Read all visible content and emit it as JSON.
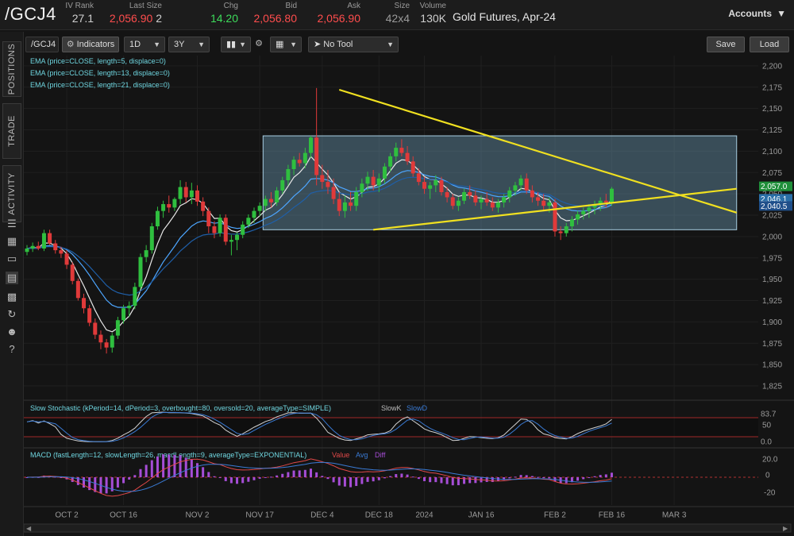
{
  "quote": {
    "symbol": "/GCJ4",
    "description": "Gold Futures, Apr-24",
    "fields": [
      {
        "label": "IV Rank",
        "value": "27.1",
        "color": "#cfcfcf"
      },
      {
        "label": "Last Size",
        "value": "2,056.90",
        "extra": "2",
        "color": "#ff4d4d"
      },
      {
        "label": "Chg",
        "value": "14.20",
        "color": "#3ddc5b"
      },
      {
        "label": "Bid",
        "value": "2,056.80",
        "color": "#ff4d4d"
      },
      {
        "label": "Ask",
        "value": "2,056.90",
        "color": "#ff4d4d"
      },
      {
        "label": "Size",
        "value": "42x4",
        "color": "#9a9a9a"
      },
      {
        "label": "Volume",
        "value": "130K",
        "color": "#cfcfcf"
      }
    ],
    "accounts_label": "Accounts"
  },
  "sidebar": {
    "tabs": [
      "POSITIONS",
      "TRADE",
      "ACTIVITY"
    ],
    "icons": [
      "list-icon",
      "grid-icon",
      "clipboard-icon",
      "chart-icon",
      "tiles-icon",
      "refresh-icon",
      "people-icon",
      "help-icon"
    ]
  },
  "toolbar": {
    "symbol": "/GCJ4",
    "studies_label": "Indicators",
    "interval": "1D",
    "range": "3Y",
    "drawing_tool": "No Tool",
    "save_label": "Save",
    "load_label": "Load"
  },
  "chart_data": {
    "type": "candlestick",
    "price_axis": {
      "min": 1812,
      "max": 2212,
      "ticks": [
        2200,
        2175,
        2150,
        2125,
        2100,
        2075,
        2050,
        2025,
        2000,
        1975,
        1950,
        1925,
        1900,
        1875,
        1850,
        1825
      ]
    },
    "date_labels": [
      {
        "label": "OCT 2",
        "index": 7
      },
      {
        "label": "OCT 16",
        "index": 17
      },
      {
        "label": "NOV 2",
        "index": 30
      },
      {
        "label": "NOV 17",
        "index": 41
      },
      {
        "label": "DEC 4",
        "index": 52
      },
      {
        "label": "DEC 18",
        "index": 62
      },
      {
        "label": "2024",
        "index": 70
      },
      {
        "label": "JAN 16",
        "index": 80
      },
      {
        "label": "FEB 2",
        "index": 93
      },
      {
        "label": "FEB 16",
        "index": 103
      },
      {
        "label": "MAR 3",
        "index": 114
      }
    ],
    "studies": [
      "EMA (price=CLOSE, length=5, displace=0)",
      "EMA (price=CLOSE, length=13, displace=0)",
      "EMA (price=CLOSE, length=21, displace=0)"
    ],
    "last_price_tags": [
      "2,057.0",
      "2,046.1",
      "2,040.5"
    ],
    "last_price_values": [
      2057,
      2046.1,
      2040.5
    ],
    "candles": [
      [
        1982,
        1990,
        1978,
        1986
      ],
      [
        1986,
        1993,
        1982,
        1989
      ],
      [
        1989,
        1994,
        1984,
        1986
      ],
      [
        1986,
        2008,
        1983,
        2004
      ],
      [
        2004,
        2008,
        1990,
        1992
      ],
      [
        1992,
        1996,
        1980,
        1984
      ],
      [
        1984,
        1988,
        1975,
        1980
      ],
      [
        1980,
        1984,
        1962,
        1967
      ],
      [
        1967,
        1970,
        1944,
        1948
      ],
      [
        1948,
        1951,
        1925,
        1928
      ],
      [
        1928,
        1933,
        1910,
        1916
      ],
      [
        1916,
        1920,
        1895,
        1899
      ],
      [
        1899,
        1904,
        1880,
        1885
      ],
      [
        1885,
        1890,
        1868,
        1876
      ],
      [
        1876,
        1880,
        1863,
        1870
      ],
      [
        1870,
        1887,
        1864,
        1884
      ],
      [
        1884,
        1906,
        1880,
        1902
      ],
      [
        1902,
        1920,
        1898,
        1916
      ],
      [
        1916,
        1924,
        1906,
        1919
      ],
      [
        1919,
        1946,
        1915,
        1941
      ],
      [
        1941,
        1980,
        1938,
        1976
      ],
      [
        1976,
        1990,
        1970,
        1984
      ],
      [
        1984,
        2016,
        1980,
        2012
      ],
      [
        2012,
        2035,
        2008,
        2030
      ],
      [
        2030,
        2042,
        2022,
        2038
      ],
      [
        2038,
        2048,
        2028,
        2034
      ],
      [
        2034,
        2046,
        2030,
        2044
      ],
      [
        2044,
        2066,
        2038,
        2058
      ],
      [
        2058,
        2064,
        2040,
        2046
      ],
      [
        2046,
        2063,
        2038,
        2054
      ],
      [
        2054,
        2060,
        2036,
        2041
      ],
      [
        2041,
        2046,
        2024,
        2030
      ],
      [
        2030,
        2034,
        2004,
        2012
      ],
      [
        2012,
        2018,
        1998,
        2004
      ],
      [
        2004,
        2026,
        2000,
        2022
      ],
      [
        2022,
        2026,
        1990,
        1994
      ],
      [
        1994,
        2002,
        1978,
        1996
      ],
      [
        1996,
        2005,
        1984,
        2002
      ],
      [
        2002,
        2018,
        1998,
        2014
      ],
      [
        2014,
        2026,
        2010,
        2022
      ],
      [
        2022,
        2034,
        2016,
        2030
      ],
      [
        2030,
        2040,
        2024,
        2036
      ],
      [
        2036,
        2048,
        2030,
        2044
      ],
      [
        2044,
        2052,
        2034,
        2040
      ],
      [
        2040,
        2058,
        2036,
        2054
      ],
      [
        2054,
        2070,
        2050,
        2066
      ],
      [
        2066,
        2084,
        2060,
        2079
      ],
      [
        2079,
        2094,
        2072,
        2090
      ],
      [
        2090,
        2098,
        2082,
        2086
      ],
      [
        2086,
        2104,
        2080,
        2098
      ],
      [
        2098,
        2118,
        2092,
        2116
      ],
      [
        2116,
        2174,
        2060,
        2072
      ],
      [
        2072,
        2084,
        2056,
        2064
      ],
      [
        2064,
        2078,
        2050,
        2058
      ],
      [
        2058,
        2068,
        2038,
        2044
      ],
      [
        2044,
        2052,
        2024,
        2030
      ],
      [
        2030,
        2048,
        2022,
        2040
      ],
      [
        2040,
        2052,
        2030,
        2036
      ],
      [
        2036,
        2058,
        2030,
        2052
      ],
      [
        2052,
        2068,
        2046,
        2062
      ],
      [
        2062,
        2076,
        2054,
        2070
      ],
      [
        2070,
        2078,
        2054,
        2060
      ],
      [
        2060,
        2074,
        2052,
        2068
      ],
      [
        2068,
        2086,
        2062,
        2082
      ],
      [
        2082,
        2098,
        2076,
        2094
      ],
      [
        2094,
        2110,
        2088,
        2104
      ],
      [
        2104,
        2114,
        2094,
        2098
      ],
      [
        2098,
        2106,
        2084,
        2088
      ],
      [
        2088,
        2094,
        2070,
        2074
      ],
      [
        2074,
        2080,
        2060,
        2064
      ],
      [
        2064,
        2070,
        2050,
        2056
      ],
      [
        2056,
        2064,
        2044,
        2060
      ],
      [
        2060,
        2072,
        2052,
        2066
      ],
      [
        2066,
        2070,
        2048,
        2052
      ],
      [
        2052,
        2058,
        2040,
        2046
      ],
      [
        2046,
        2050,
        2032,
        2036
      ],
      [
        2036,
        2046,
        2030,
        2042
      ],
      [
        2042,
        2056,
        2038,
        2052
      ],
      [
        2052,
        2060,
        2044,
        2048
      ],
      [
        2048,
        2054,
        2036,
        2040
      ],
      [
        2040,
        2048,
        2032,
        2044
      ],
      [
        2044,
        2052,
        2036,
        2040
      ],
      [
        2040,
        2046,
        2030,
        2034
      ],
      [
        2034,
        2044,
        2028,
        2040
      ],
      [
        2040,
        2050,
        2034,
        2046
      ],
      [
        2046,
        2058,
        2040,
        2054
      ],
      [
        2054,
        2064,
        2048,
        2060
      ],
      [
        2060,
        2072,
        2054,
        2068
      ],
      [
        2068,
        2074,
        2050,
        2054
      ],
      [
        2054,
        2060,
        2040,
        2046
      ],
      [
        2046,
        2052,
        2036,
        2042
      ],
      [
        2042,
        2050,
        2030,
        2036
      ],
      [
        2036,
        2046,
        2028,
        2040
      ],
      [
        2040,
        2044,
        2000,
        2006
      ],
      [
        2006,
        2012,
        1996,
        2004
      ],
      [
        2004,
        2016,
        2000,
        2012
      ],
      [
        2012,
        2024,
        2006,
        2020
      ],
      [
        2020,
        2030,
        2014,
        2026
      ],
      [
        2026,
        2034,
        2020,
        2030
      ],
      [
        2030,
        2038,
        2022,
        2034
      ],
      [
        2034,
        2042,
        2026,
        2038
      ],
      [
        2038,
        2046,
        2030,
        2042
      ],
      [
        2042,
        2050,
        2034,
        2040
      ],
      [
        2040,
        2058,
        2036,
        2056
      ]
    ],
    "consolidation_box": {
      "start_index": 42,
      "end_index": 125,
      "high": 2118,
      "low": 2008
    },
    "trendlines": [
      {
        "x1_index": 55,
        "y1": 2172,
        "x2_index": 125,
        "y2": 2028
      },
      {
        "x1_index": 61,
        "y1": 2008,
        "x2_index": 125,
        "y2": 2056
      }
    ],
    "stochastic": {
      "label": "Slow Stochastic (kPeriod=14, dPeriod=3, overbought=80, oversold=20, averageType=SIMPLE)",
      "legend": [
        "SlowK",
        "SlowD"
      ],
      "ticks": [
        "83.7",
        "50",
        "0.0"
      ],
      "levels": [
        80,
        20
      ]
    },
    "macd": {
      "label": "MACD (fastLength=12, slowLength=26, macdLength=9, averageType=EXPONENTIAL)",
      "legend": [
        "Value",
        "Avg",
        "Diff"
      ],
      "ticks": [
        "20.0",
        "0",
        "-20"
      ]
    }
  }
}
